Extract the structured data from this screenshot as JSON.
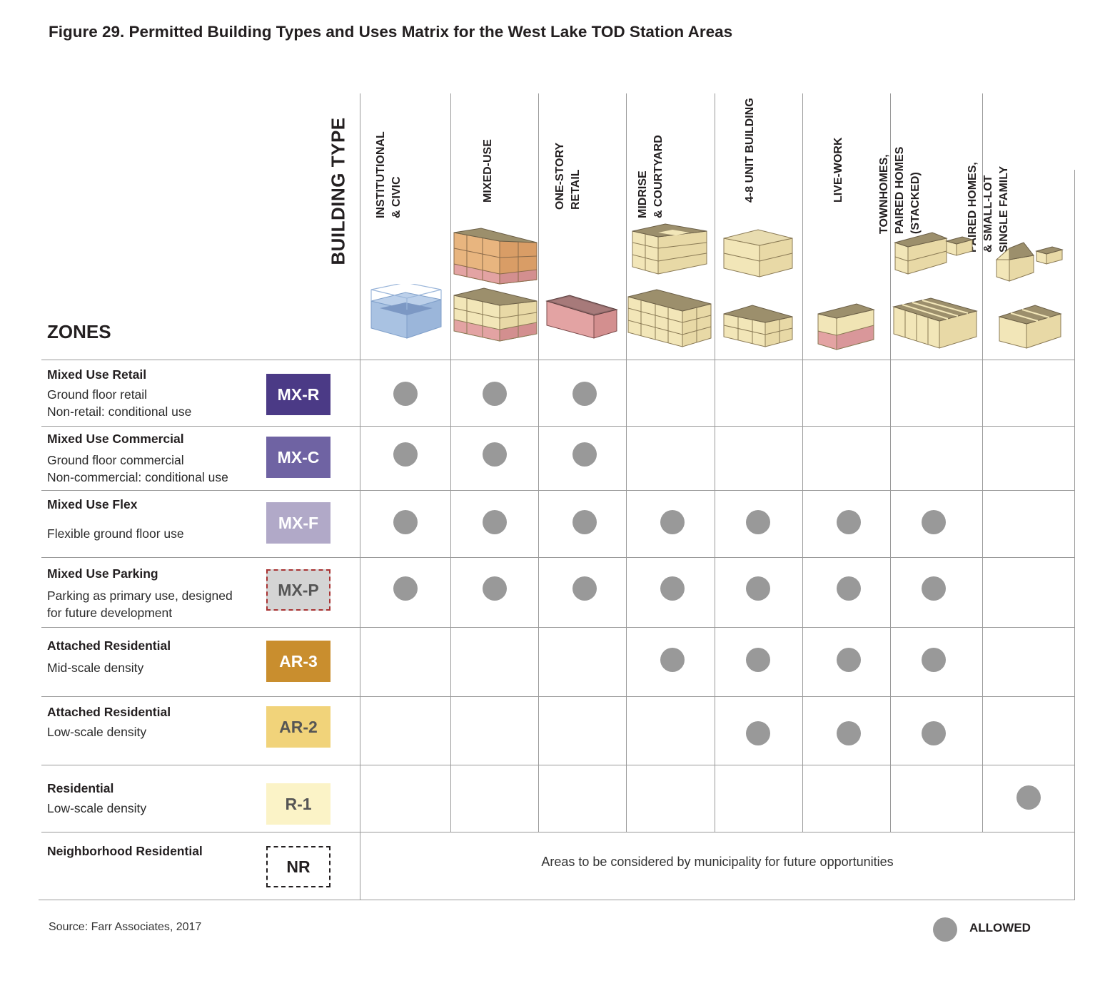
{
  "title": "Figure 29. Permitted Building Types and Uses Matrix for the West Lake TOD Station Areas",
  "building_type_label": "BUILDING TYPE",
  "zones_label": "ZONES",
  "columns": [
    {
      "line1": "INSTITUTIONAL",
      "line2": "& CIVIC",
      "line3": ""
    },
    {
      "line1": "MIXED-USE",
      "line2": "",
      "line3": ""
    },
    {
      "line1": "ONE-STORY",
      "line2": "RETAIL",
      "line3": ""
    },
    {
      "line1": "MIDRISE",
      "line2": "& COURTYARD",
      "line3": ""
    },
    {
      "line1": "4-8 UNIT BUILDING",
      "line2": "",
      "line3": ""
    },
    {
      "line1": "LIVE-WORK",
      "line2": "",
      "line3": ""
    },
    {
      "line1": "TOWNHOMES,",
      "line2": "PAIRED HOMES",
      "line3": "(STACKED)"
    },
    {
      "line1": "PAIRED HOMES,",
      "line2": "& SMALL-LOT",
      "line3": "SINGLE FAMILY"
    }
  ],
  "zones": [
    {
      "title": "Mixed Use Retail",
      "desc1": "Ground floor retail",
      "desc2": "Non-retail: conditional use",
      "code": "MX-R",
      "color": "#4b3a86",
      "text_color": "#ffffff",
      "allowed": [
        true,
        true,
        true,
        false,
        false,
        false,
        false,
        false
      ]
    },
    {
      "title": "Mixed Use Commercial",
      "desc1": "Ground floor commercial",
      "desc2": "Non-commercial: conditional use",
      "code": "MX-C",
      "color": "#6f63a3",
      "text_color": "#ffffff",
      "allowed": [
        true,
        true,
        true,
        false,
        false,
        false,
        false,
        false
      ]
    },
    {
      "title": "Mixed Use Flex",
      "desc1": "Flexible ground floor use",
      "desc2": "",
      "code": "MX-F",
      "color": "#b1a9c8",
      "text_color": "#ffffff",
      "allowed": [
        true,
        true,
        true,
        true,
        true,
        true,
        true,
        false
      ]
    },
    {
      "title": "Mixed Use Parking",
      "desc1": "Parking as primary use, designed",
      "desc2": "for future development",
      "code": "MX-P",
      "color": "#d4d4d4",
      "text_color": "#555555",
      "border": "dashed-red",
      "allowed": [
        true,
        true,
        true,
        true,
        true,
        true,
        true,
        false
      ]
    },
    {
      "title": "Attached Residential",
      "desc1": "Mid-scale density",
      "desc2": "",
      "code": "AR-3",
      "color": "#c98e2e",
      "text_color": "#ffffff",
      "allowed": [
        false,
        false,
        false,
        true,
        true,
        true,
        true,
        false
      ]
    },
    {
      "title": "Attached Residential",
      "desc1": "Low-scale density",
      "desc2": "",
      "code": "AR-2",
      "color": "#f1d37a",
      "text_color": "#555555",
      "allowed": [
        false,
        false,
        false,
        false,
        true,
        true,
        true,
        false
      ]
    },
    {
      "title": "Residential",
      "desc1": "Low-scale density",
      "desc2": "",
      "code": "R-1",
      "color": "#fbf3c7",
      "text_color": "#555555",
      "allowed": [
        false,
        false,
        false,
        false,
        false,
        false,
        false,
        true
      ]
    },
    {
      "title": "Neighborhood Residential",
      "desc1": "",
      "desc2": "",
      "code": "NR",
      "color": "#ffffff",
      "text_color": "#231f20",
      "border": "dashed-black",
      "allowed": []
    }
  ],
  "future_note": "Areas to be considered by municipality for future opportunities",
  "source": "Source: Farr Associates, 2017",
  "legend_label": "ALLOWED",
  "dot_color": "#999999"
}
